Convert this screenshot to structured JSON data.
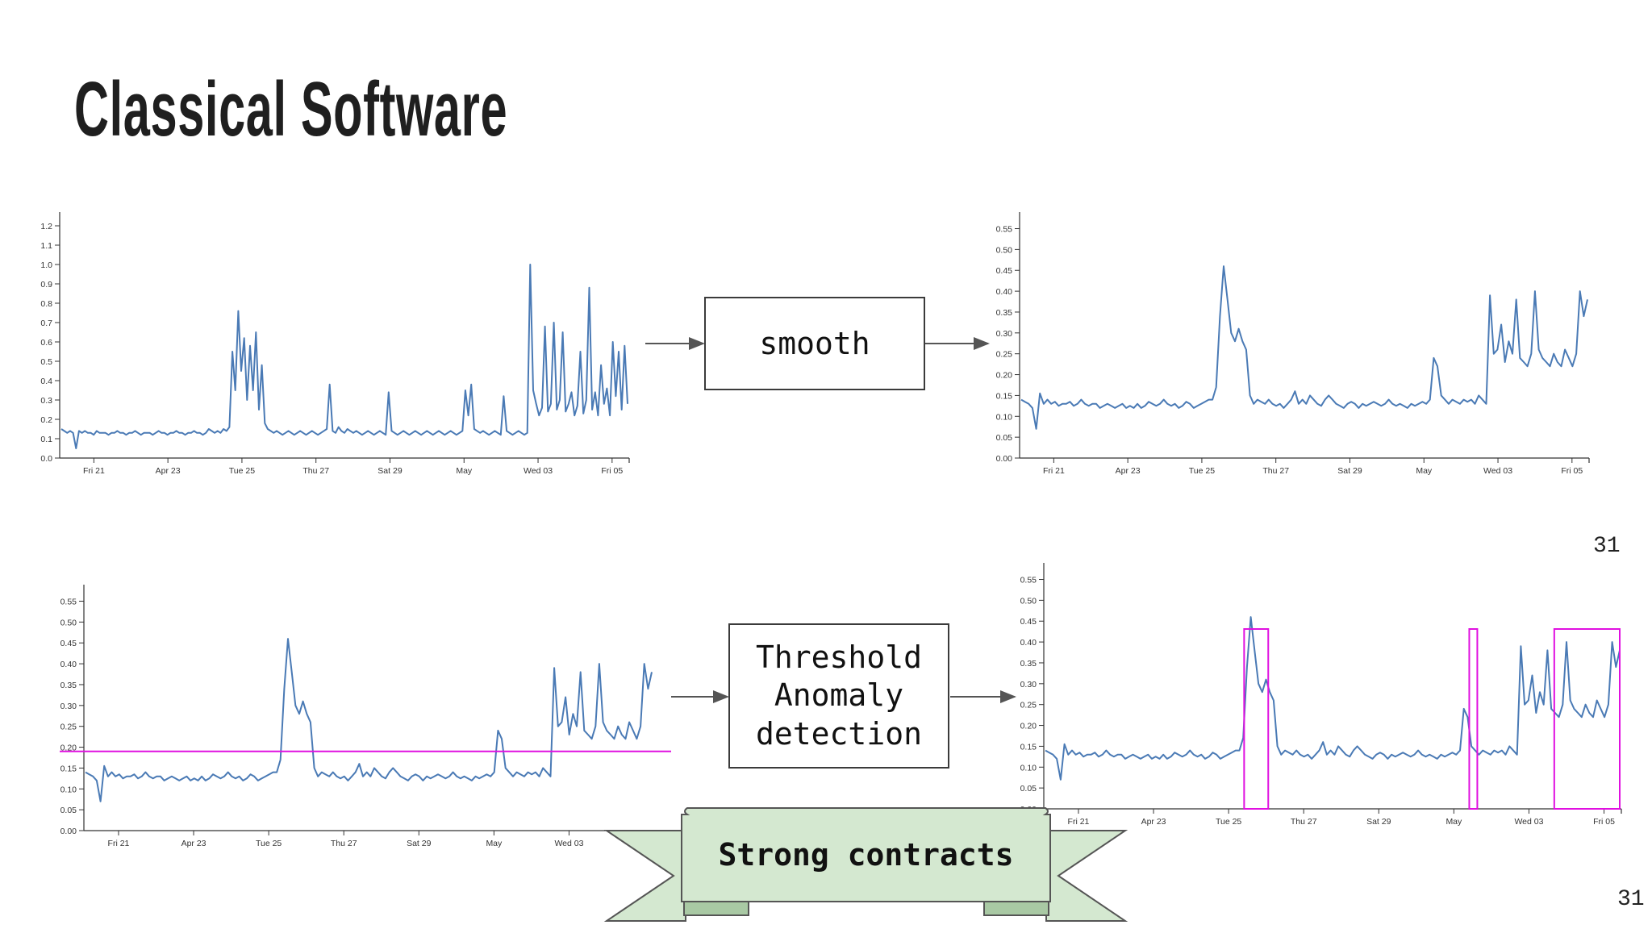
{
  "slide": {
    "title": "Classical Software",
    "page_number_mid": "31",
    "page_number_bottom": "31",
    "smooth_label": "smooth",
    "threshold_label": "Threshold\nAnomaly\ndetection",
    "banner_label": "Strong contracts"
  },
  "colors": {
    "series": "#4a7ab5",
    "threshold": "#e010e0",
    "box_border": "#3b3b3b",
    "banner_fill": "#d4e8d0",
    "banner_fill_dark": "#a9c9a4"
  },
  "chart_data": [
    {
      "id": "raw",
      "type": "line",
      "x_ticks": [
        "Fri 21",
        "Apr 23",
        "Tue 25",
        "Thu 27",
        "Sat 29",
        "May",
        "Wed 03",
        "Fri 05"
      ],
      "y_ticks": [
        "0.0",
        "0.1",
        "0.2",
        "0.3",
        "0.4",
        "0.5",
        "0.6",
        "0.7",
        "0.8",
        "0.9",
        "1.0",
        "1.1",
        "1.2"
      ],
      "ylim": [
        0,
        1.25
      ],
      "series": [
        {
          "values": [
            0.15,
            0.14,
            0.13,
            0.14,
            0.13,
            0.05,
            0.14,
            0.13,
            0.14,
            0.13,
            0.13,
            0.12,
            0.14,
            0.13,
            0.13,
            0.13,
            0.12,
            0.13,
            0.13,
            0.14,
            0.13,
            0.13,
            0.12,
            0.13,
            0.13,
            0.14,
            0.13,
            0.12,
            0.13,
            0.13,
            0.13,
            0.12,
            0.13,
            0.14,
            0.13,
            0.13,
            0.12,
            0.13,
            0.13,
            0.14,
            0.13,
            0.13,
            0.12,
            0.13,
            0.13,
            0.14,
            0.13,
            0.13,
            0.12,
            0.13,
            0.15,
            0.14,
            0.13,
            0.14,
            0.13,
            0.15,
            0.14,
            0.16,
            0.55,
            0.35,
            0.76,
            0.45,
            0.62,
            0.3,
            0.58,
            0.35,
            0.65,
            0.25,
            0.48,
            0.18,
            0.15,
            0.14,
            0.13,
            0.14,
            0.13,
            0.12,
            0.13,
            0.14,
            0.13,
            0.12,
            0.13,
            0.14,
            0.13,
            0.12,
            0.13,
            0.14,
            0.13,
            0.12,
            0.13,
            0.14,
            0.15,
            0.38,
            0.14,
            0.13,
            0.16,
            0.14,
            0.13,
            0.15,
            0.14,
            0.13,
            0.14,
            0.13,
            0.12,
            0.13,
            0.14,
            0.13,
            0.12,
            0.13,
            0.14,
            0.13,
            0.12,
            0.34,
            0.14,
            0.13,
            0.12,
            0.13,
            0.14,
            0.13,
            0.12,
            0.13,
            0.14,
            0.13,
            0.12,
            0.13,
            0.14,
            0.13,
            0.12,
            0.13,
            0.14,
            0.13,
            0.12,
            0.13,
            0.14,
            0.13,
            0.12,
            0.13,
            0.14,
            0.35,
            0.22,
            0.38,
            0.15,
            0.14,
            0.13,
            0.14,
            0.13,
            0.12,
            0.13,
            0.14,
            0.13,
            0.12,
            0.32,
            0.14,
            0.13,
            0.12,
            0.13,
            0.14,
            0.13,
            0.12,
            0.13,
            1.0,
            0.35,
            0.28,
            0.22,
            0.26,
            0.68,
            0.24,
            0.28,
            0.7,
            0.25,
            0.3,
            0.65,
            0.24,
            0.28,
            0.34,
            0.22,
            0.27,
            0.55,
            0.23,
            0.3,
            0.88,
            0.25,
            0.34,
            0.22,
            0.48,
            0.28,
            0.36,
            0.22,
            0.6,
            0.32,
            0.55,
            0.25,
            0.58,
            0.28
          ]
        }
      ]
    },
    {
      "id": "smoothed",
      "type": "line",
      "x_ticks": [
        "Fri 21",
        "Apr 23",
        "Tue 25",
        "Thu 27",
        "Sat 29",
        "May",
        "Wed 03",
        "Fri 05"
      ],
      "y_ticks": [
        "0.00",
        "0.05",
        "0.10",
        "0.15",
        "0.20",
        "0.25",
        "0.30",
        "0.35",
        "0.40",
        "0.45",
        "0.50",
        "0.55"
      ],
      "ylim": [
        0,
        0.58
      ],
      "series": [
        {
          "values": [
            0.14,
            0.135,
            0.13,
            0.12,
            0.07,
            0.155,
            0.13,
            0.14,
            0.13,
            0.135,
            0.125,
            0.13,
            0.13,
            0.135,
            0.125,
            0.13,
            0.14,
            0.13,
            0.125,
            0.13,
            0.13,
            0.12,
            0.125,
            0.13,
            0.125,
            0.12,
            0.125,
            0.13,
            0.12,
            0.125,
            0.12,
            0.13,
            0.12,
            0.125,
            0.135,
            0.13,
            0.125,
            0.13,
            0.14,
            0.13,
            0.125,
            0.13,
            0.12,
            0.125,
            0.135,
            0.13,
            0.12,
            0.125,
            0.13,
            0.135,
            0.14,
            0.14,
            0.17,
            0.34,
            0.46,
            0.38,
            0.3,
            0.28,
            0.31,
            0.28,
            0.26,
            0.15,
            0.13,
            0.14,
            0.135,
            0.13,
            0.14,
            0.13,
            0.125,
            0.13,
            0.12,
            0.13,
            0.14,
            0.16,
            0.13,
            0.14,
            0.13,
            0.15,
            0.14,
            0.13,
            0.125,
            0.14,
            0.15,
            0.14,
            0.13,
            0.125,
            0.12,
            0.13,
            0.135,
            0.13,
            0.12,
            0.13,
            0.125,
            0.13,
            0.135,
            0.13,
            0.125,
            0.13,
            0.14,
            0.13,
            0.125,
            0.13,
            0.125,
            0.12,
            0.13,
            0.125,
            0.13,
            0.135,
            0.13,
            0.14,
            0.24,
            0.22,
            0.15,
            0.14,
            0.13,
            0.14,
            0.135,
            0.13,
            0.14,
            0.135,
            0.14,
            0.13,
            0.15,
            0.14,
            0.13,
            0.39,
            0.25,
            0.26,
            0.32,
            0.23,
            0.28,
            0.25,
            0.38,
            0.24,
            0.23,
            0.22,
            0.25,
            0.4,
            0.26,
            0.24,
            0.23,
            0.22,
            0.25,
            0.23,
            0.22,
            0.26,
            0.24,
            0.22,
            0.25,
            0.4,
            0.34,
            0.38
          ]
        }
      ]
    },
    {
      "id": "threshold",
      "type": "line",
      "x_ticks": [
        "Fri 21",
        "Apr 23",
        "Tue 25",
        "Thu 27",
        "Sat 29",
        "May",
        "Wed 03"
      ],
      "y_ticks": [
        "0.00",
        "0.05",
        "0.10",
        "0.15",
        "0.20",
        "0.25",
        "0.30",
        "0.35",
        "0.40",
        "0.45",
        "0.50",
        "0.55"
      ],
      "ylim": [
        0,
        0.58
      ],
      "threshold": 0.19
    },
    {
      "id": "detected",
      "type": "line",
      "x_ticks": [
        "Fri 21",
        "Apr 23",
        "Tue 25",
        "Thu 27",
        "Sat 29",
        "May",
        "Wed 03",
        "Fri 05"
      ],
      "y_ticks": [
        "0.00",
        "0.05",
        "0.10",
        "0.15",
        "0.20",
        "0.25",
        "0.30",
        "0.35",
        "0.40",
        "0.45",
        "0.50",
        "0.55"
      ],
      "ylim": [
        0,
        0.58
      ],
      "anomaly_regions": [
        [
          0.346,
          0.388
        ],
        [
          0.738,
          0.752
        ],
        [
          0.886,
          1.0
        ]
      ]
    }
  ]
}
